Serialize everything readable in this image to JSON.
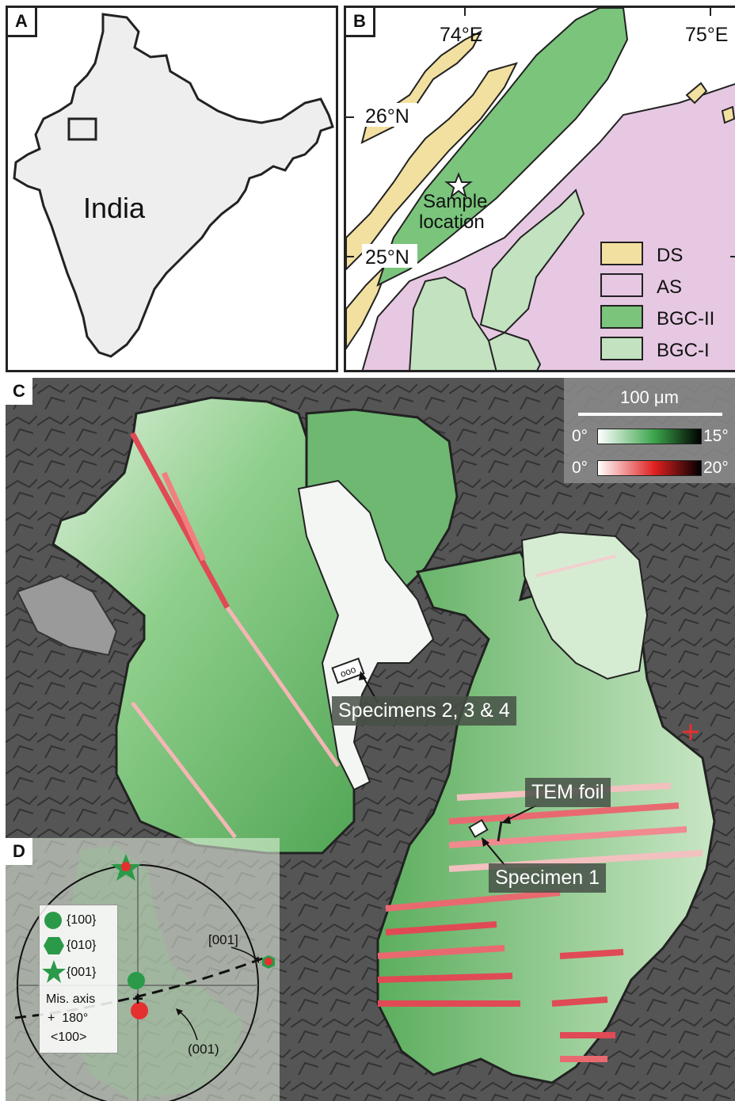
{
  "panel_a": {
    "letter": "A",
    "country_label": "India"
  },
  "panel_b": {
    "letter": "B",
    "lon_labels": [
      "74°E",
      "75°E"
    ],
    "lat_labels": [
      "26°N",
      "25°N"
    ],
    "sample_label_line1": "Sample",
    "sample_label_line2": "location",
    "legend": [
      {
        "label": "DS",
        "color": "#f2e0a0"
      },
      {
        "label": "AS",
        "color": "#e6c8e2"
      },
      {
        "label": "BGC-II",
        "color": "#7ac47c"
      },
      {
        "label": "BGC-I",
        "color": "#c2e2c0"
      }
    ]
  },
  "panel_c": {
    "letter": "C",
    "scale_bar": "100 μm",
    "colorbar_green": {
      "min": "0°",
      "max": "15°"
    },
    "colorbar_red": {
      "min": "0°",
      "max": "20°"
    },
    "labels": {
      "specimens_234": "Specimens 2, 3 & 4",
      "tem_foil": "TEM foil",
      "specimen_1": "Specimen 1"
    }
  },
  "panel_d": {
    "letter": "D",
    "legend": [
      "{100}",
      "{010}",
      "{001}"
    ],
    "mis_axis_line1": "Mis. axis",
    "mis_axis_line2": "+  180°",
    "mis_axis_line3": "<100>",
    "annot_001_dir": "[001]",
    "annot_001_plane": "(001)"
  },
  "colors": {
    "india_fill": "#eeeeee",
    "grain_green": "#5cae5e",
    "twin_red": "#e04a55",
    "marker_green": "#2a9a48",
    "marker_red": "#e53030"
  }
}
